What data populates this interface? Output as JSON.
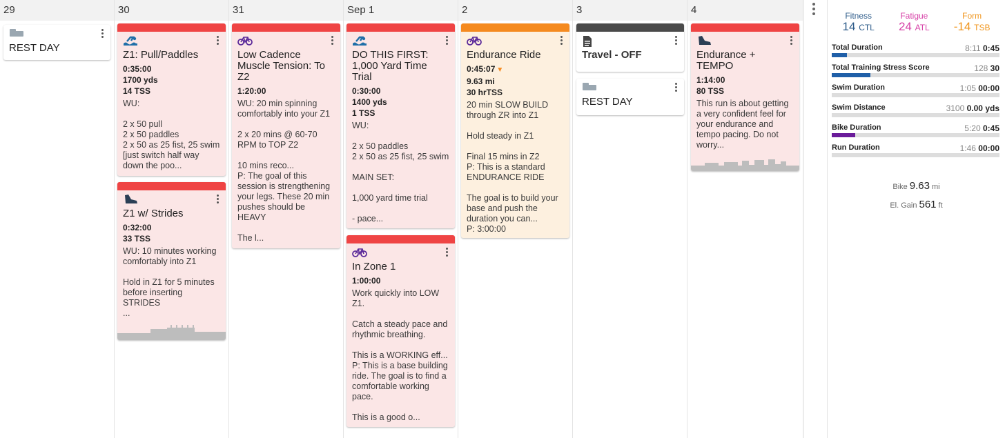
{
  "days": [
    {
      "label": "29"
    },
    {
      "label": "30"
    },
    {
      "label": "31"
    },
    {
      "label": "Sep 1"
    },
    {
      "label": "2"
    },
    {
      "label": "3"
    },
    {
      "label": "4"
    }
  ],
  "cards": {
    "rest29": {
      "title": "REST DAY",
      "icon": "bed-icon"
    },
    "pull": {
      "title": "Z1: Pull/Paddles",
      "duration": "0:35:00",
      "distance": "1700 yds",
      "tss": "14 TSS",
      "desc": "WU:\n\n2 x 50 pull\n2 x 50 paddles\n2 x 50 as 25 fist, 25 swim [just switch half way down the poo...",
      "icon": "swim-icon"
    },
    "strides": {
      "title": "Z1 w/ Strides",
      "duration": "0:32:00",
      "tss": "33 TSS",
      "desc": "WU: 10 minutes working comfortably into Z1\n\nHold in Z1 for 5 minutes before inserting STRIDES\n...",
      "icon": "shoe-icon"
    },
    "cadence": {
      "title": "Low Cadence Muscle Tension: To Z2",
      "duration": "1:20:00",
      "desc": "WU: 20 min spinning comfortably into your Z1\n\n2 x 20 mins @ 60-70 RPM to TOP Z2\n\n10 mins reco...\nP: The goal of this session is strengthening your legs. These 20 min pushes should be HEAVY\n\nThe l...",
      "icon": "bike-icon"
    },
    "trial": {
      "title": "DO THIS FIRST: 1,000 Yard Time Trial",
      "duration": "0:30:00",
      "distance": "1400 yds",
      "tss": "1 TSS",
      "desc": "WU:\n\n2 x 50 paddles\n2 x 50 as 25 fist, 25 swim\n\nMAIN SET:\n\n1,000 yard time trial\n\n- pace...",
      "icon": "swim-icon"
    },
    "zone1": {
      "title": "In Zone 1",
      "duration": "1:00:00",
      "desc": "Work quickly into LOW Z1.\n\nCatch a steady pace and rhythmic breathing.\n\nThis is a WORKING eff...\nP: This is a base building ride. The goal is to find a comfortable working pace.\n\nThis is a good o...",
      "icon": "bike-icon"
    },
    "endurance": {
      "title": "Endurance Ride",
      "duration": "0:45:07",
      "distance": "9.63 mi",
      "tss": "30 hrTSS",
      "desc": "20 min SLOW BUILD through ZR into Z1\n\nHold steady in Z1\n\nFinal 15 mins in Z2\nP: This is a standard ENDURANCE RIDE\n\nThe goal is to build your base and push the duration you can...\nP: 3:00:00",
      "icon": "bike-icon"
    },
    "travel": {
      "title": "Travel - OFF",
      "icon": "document-icon"
    },
    "rest3": {
      "title": "REST DAY",
      "icon": "bed-icon"
    },
    "tempo": {
      "title": "Endurance + TEMPO",
      "duration": "1:14:00",
      "tss": "80 TSS",
      "desc": "This run is about getting a very confident feel for your endurance and tempo pacing. Do not worry...",
      "icon": "shoe-icon"
    }
  },
  "sidebar": {
    "fitness": {
      "label": "Fitness",
      "value": "14",
      "unit": "CTL",
      "color": "#2e5c8a"
    },
    "fatigue": {
      "label": "Fatigue",
      "value": "24",
      "unit": "ATL",
      "color": "#d63fa6"
    },
    "form": {
      "label": "Form",
      "value": "-14",
      "unit": "TSB",
      "color": "#f0961e"
    },
    "summary": [
      {
        "name": "Total Duration",
        "planned": "8:11",
        "completed": "0:45",
        "progress": 0.09,
        "color": "#1f5fa8"
      },
      {
        "name": "Total Training Stress Score",
        "planned": "128",
        "completed": "30",
        "progress": 0.23,
        "color": "#1f5fa8"
      },
      {
        "name": "Swim Duration",
        "planned": "1:05",
        "completed": "00:00",
        "progress": 0,
        "color": "#1f5fa8"
      },
      {
        "name": "Swim Distance",
        "planned": "3100",
        "completed": "0.00 yds",
        "progress": 0,
        "color": "#1f5fa8"
      },
      {
        "name": "Bike Duration",
        "planned": "5:20",
        "completed": "0:45",
        "progress": 0.14,
        "color": "#6a1b9a"
      },
      {
        "name": "Run Duration",
        "planned": "1:46",
        "completed": "00:00",
        "progress": 0,
        "color": "#1f5fa8"
      }
    ],
    "bike": {
      "label": "Bike",
      "value": "9.63",
      "unit": "mi"
    },
    "elev": {
      "label": "El. Gain",
      "value": "561",
      "unit": "ft"
    }
  }
}
